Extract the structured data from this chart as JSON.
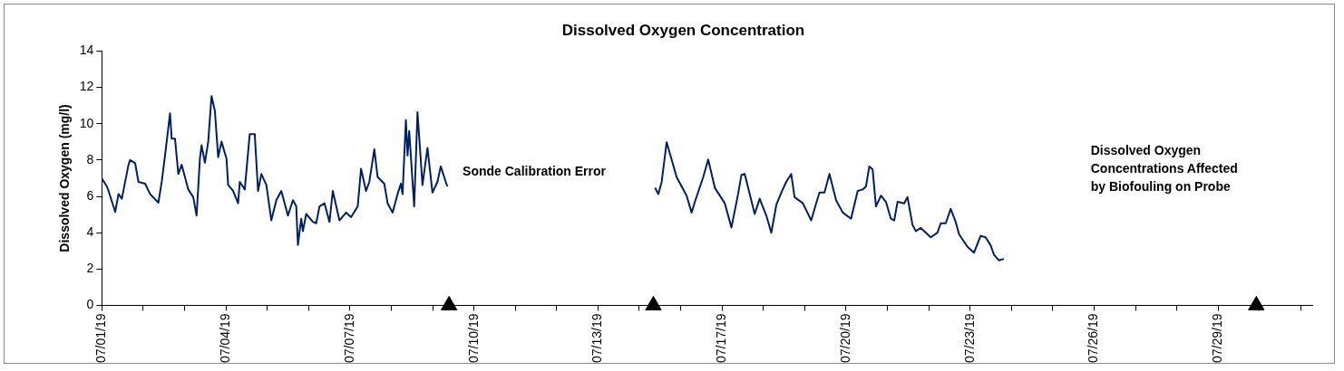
{
  "chart_data": {
    "type": "line",
    "title": "Dissolved Oxygen Concentration",
    "ylabel": "Dissolved Oxygen (mg/l)",
    "xlim": [
      "--07-01T00:00",
      "--07-31T08:40"
    ],
    "xticks": [
      {
        "value": "--07-01T00:00",
        "label": "07/01/19"
      },
      {
        "value": "--07-02T00:53",
        "label": null
      },
      {
        "value": "--07-03T01:47",
        "label": null
      },
      {
        "value": "--07-04T02:40",
        "label": "07/04/19"
      },
      {
        "value": "--07-05T03:33",
        "label": null
      },
      {
        "value": "--07-06T04:27",
        "label": null
      },
      {
        "value": "--07-07T05:20",
        "label": "07/07/19"
      },
      {
        "value": "--07-08T06:13",
        "label": null
      },
      {
        "value": "--07-09T07:07",
        "label": null
      },
      {
        "value": "--07-10T08:00",
        "label": "07/10/19"
      },
      {
        "value": "--07-11T08:53",
        "label": null
      },
      {
        "value": "--07-12T09:47",
        "label": null
      },
      {
        "value": "--07-13T10:40",
        "label": "07/13/19"
      },
      {
        "value": "--07-14T11:33",
        "label": null
      },
      {
        "value": "--07-15T12:27",
        "label": null
      },
      {
        "value": "--07-16T13:20",
        "label": "07/17/19"
      },
      {
        "value": "--07-17T14:13",
        "label": null
      },
      {
        "value": "--07-18T15:07",
        "label": null
      },
      {
        "value": "--07-19T16:00",
        "label": "07/20/19"
      },
      {
        "value": "--07-20T16:53",
        "label": null
      },
      {
        "value": "--07-21T17:47",
        "label": null
      },
      {
        "value": "--07-22T18:40",
        "label": "07/23/19"
      },
      {
        "value": "--07-23T19:33",
        "label": null
      },
      {
        "value": "--07-24T20:27",
        "label": null
      },
      {
        "value": "--07-25T21:20",
        "label": "07/26/19"
      },
      {
        "value": "--07-26T22:13",
        "label": null
      },
      {
        "value": "--07-27T23:07",
        "label": null
      },
      {
        "value": "--07-29T00:00",
        "label": "07/29/19"
      },
      {
        "value": "--07-30T00:53",
        "label": null
      },
      {
        "value": "--07-31T01:47",
        "label": null
      }
    ],
    "ylim": [
      0,
      14
    ],
    "yticks": [
      0,
      2,
      4,
      6,
      8,
      10,
      12,
      14
    ],
    "grid": false,
    "legend": false,
    "annotations": [
      "Sonde Calibration Error",
      "Dissolved Oxygen Concentrations Affected by Biofouling on Probe"
    ],
    "series": [
      {
        "color": "#002060",
        "marker": "none",
        "x": [
          "--07-01T00:00",
          "--07-01T03:00",
          "--07-01T04:00",
          "--07-01T08:00",
          "--07-01T10:00",
          "--07-01T12:00",
          "--07-01T16:00",
          "--07-01T17:00",
          "--07-01T20:00",
          "--07-01T22:00",
          "--07-02T02:00",
          "--07-02T05:00",
          "--07-02T10:00",
          "--07-02T12:00",
          "--07-02T14:00",
          "--07-02T17:00",
          "--07-02T18:00",
          "--07-02T20:00",
          "--07-02T22:00",
          "--07-03T00:00",
          "--07-03T04:00",
          "--07-03T07:00",
          "--07-03T09:00",
          "--07-03T11:00",
          "--07-03T12:00",
          "--07-03T14:00",
          "--07-03T16:00",
          "--07-03T18:00",
          "--07-03T20:00",
          "--07-03T22:00",
          "--07-04T00:00",
          "--07-04T03:00",
          "--07-04T04:00",
          "--07-04T07:00",
          "--07-04T10:00",
          "--07-04T11:00",
          "--07-04T14:00",
          "--07-04T17:00",
          "--07-04T20:00",
          "--07-04T22:00",
          "--07-05T00:00",
          "--07-05T03:00",
          "--07-05T06:00",
          "--07-05T09:00",
          "--07-05T12:00",
          "--07-05T16:00",
          "--07-05T19:00",
          "--07-05T21:00",
          "--07-05T22:00",
          "--07-06T00:00",
          "--07-06T01:00",
          "--07-06T03:00",
          "--07-06T07:00",
          "--07-06T09:00",
          "--07-06T11:00",
          "--07-06T14:00",
          "--07-06T17:00",
          "--07-06T19:00",
          "--07-06T23:00",
          "--07-07T03:00",
          "--07-07T06:00",
          "--07-07T10:00",
          "--07-07T12:00",
          "--07-07T15:00",
          "--07-07T17:00",
          "--07-07T20:00",
          "--07-07T22:00",
          "--07-08T02:00",
          "--07-08T04:00",
          "--07-08T07:00",
          "--07-08T10:00",
          "--07-08T12:00",
          "--07-08T13:00",
          "--07-08T15:00",
          "--07-08T16:00",
          "--07-08T17:00",
          "--07-08T20:00",
          "--07-08T22:00",
          "--07-09T01:00",
          "--07-09T04:00",
          "--07-09T07:00",
          "--07-09T10:00",
          "--07-09T12:00",
          "--07-09T15:00",
          "--07-09T16:00",
          "--07-11T00:00",
          "--07-14T21:00",
          "--07-14T23:00",
          "--07-15T01:00",
          "--07-15T04:00",
          "--07-15T10:00",
          "--07-15T16:00",
          "--07-15T19:00",
          "--07-15T21:00",
          "--07-16T02:00",
          "--07-16T05:00",
          "--07-16T09:00",
          "--07-16T15:00",
          "--07-16T19:00",
          "--07-16T23:00",
          "--07-17T01:00",
          "--07-17T03:00",
          "--07-17T06:00",
          "--07-17T09:00",
          "--07-17T12:00",
          "--07-17T16:00",
          "--07-17T19:00",
          "--07-17T22:00",
          "--07-18T01:00",
          "--07-18T04:00",
          "--07-18T07:00",
          "--07-18T09:00",
          "--07-18T14:00",
          "--07-18T19:00",
          "--07-18T22:00",
          "--07-19T00:00",
          "--07-19T03:00",
          "--07-19T06:00",
          "--07-19T10:00",
          "--07-19T14:00",
          "--07-19T19:00",
          "--07-19T23:00",
          "--07-20T02:00",
          "--07-20T04:00",
          "--07-20T06:00",
          "--07-20T08:00",
          "--07-20T10:00",
          "--07-20T13:00",
          "--07-20T16:00",
          "--07-20T19:00",
          "--07-20T21:00",
          "--07-20T23:00",
          "--07-21T03:00",
          "--07-21T05:00",
          "--07-21T08:00",
          "--07-21T10:00",
          "--07-21T13:00",
          "--07-21T19:00",
          "--07-21T23:00",
          "--07-22T01:00",
          "--07-22T04:00",
          "--07-22T07:00",
          "--07-22T10:00",
          "--07-22T12:00",
          "--07-22T17:00",
          "--07-22T21:00",
          "--07-23T01:00",
          "--07-23T04:00",
          "--07-23T07:00",
          "--07-23T09:00",
          "--07-23T12:00",
          "--07-23T15:00"
        ],
        "values": [
          6.98,
          6.55,
          6.3,
          5.14,
          6.13,
          5.87,
          7.74,
          8.0,
          7.83,
          6.8,
          6.7,
          6.13,
          5.65,
          6.8,
          8.25,
          10.57,
          9.18,
          9.18,
          7.23,
          7.74,
          6.38,
          5.96,
          4.94,
          8.08,
          8.81,
          7.85,
          9.01,
          11.52,
          10.71,
          8.16,
          9.01,
          8.08,
          6.63,
          6.3,
          5.62,
          6.8,
          6.38,
          9.43,
          9.43,
          6.3,
          7.23,
          6.63,
          4.68,
          5.79,
          6.3,
          4.94,
          5.79,
          5.45,
          3.33,
          4.77,
          4.09,
          5.03,
          4.6,
          4.52,
          5.45,
          5.62,
          4.6,
          6.3,
          4.68,
          5.11,
          4.86,
          5.45,
          7.52,
          6.3,
          6.8,
          8.59,
          7.06,
          6.7,
          5.62,
          5.11,
          6.13,
          6.7,
          6.13,
          10.2,
          8.25,
          9.6,
          5.45,
          10.63,
          6.63,
          8.67,
          6.21,
          6.8,
          7.65,
          6.8,
          6.55,
          null,
          6.47,
          6.13,
          6.8,
          8.98,
          7.06,
          6.04,
          5.11,
          5.7,
          7.06,
          8.03,
          6.47,
          5.62,
          4.29,
          6.13,
          7.18,
          7.23,
          6.13,
          5.03,
          5.87,
          4.94,
          4.0,
          5.53,
          6.21,
          6.8,
          7.23,
          5.96,
          5.62,
          4.68,
          5.62,
          6.21,
          6.21,
          7.23,
          5.79,
          5.11,
          4.77,
          6.3,
          6.38,
          6.55,
          7.65,
          7.48,
          5.45,
          6.04,
          5.7,
          4.77,
          4.68,
          5.7,
          5.62,
          5.96,
          4.43,
          4.09,
          4.26,
          3.75,
          4.0,
          4.52,
          4.52,
          5.31,
          4.6,
          3.92,
          3.24,
          2.9,
          3.83,
          3.75,
          3.32,
          2.8,
          2.48,
          2.56
        ]
      },
      {
        "type": "scatter",
        "color": "#000000",
        "marker": "triangle",
        "x": [
          "--07-09T17:00",
          "--07-14T20:00",
          "--07-29T23:00"
        ],
        "values": [
          0,
          0,
          0
        ]
      }
    ]
  }
}
